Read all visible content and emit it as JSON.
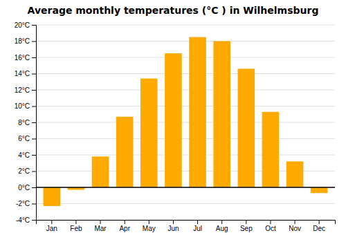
{
  "chart_data": {
    "type": "bar",
    "title": "Average monthly temperatures (°C ) in Wilhelmsburg",
    "categories": [
      "Jan",
      "Feb",
      "Mar",
      "Apr",
      "May",
      "Jun",
      "Jul",
      "Aug",
      "Sep",
      "Oct",
      "Nov",
      "Dec"
    ],
    "values": [
      -2.3,
      -0.3,
      3.8,
      8.7,
      13.4,
      16.5,
      18.5,
      18.0,
      14.6,
      9.3,
      3.2,
      -0.7
    ],
    "color": "#FFAA00",
    "ylim": [
      -4,
      20
    ],
    "yticks": [
      {
        "value": -4,
        "label": "-4°C"
      },
      {
        "value": -2,
        "label": "-2°C"
      },
      {
        "value": 0,
        "label": "0°C"
      },
      {
        "value": 2,
        "label": "2°C"
      },
      {
        "value": 4,
        "label": "4°C"
      },
      {
        "value": 6,
        "label": "6°C"
      },
      {
        "value": 8,
        "label": "8°C"
      },
      {
        "value": 10,
        "label": "10°C"
      },
      {
        "value": 12,
        "label": "12°C"
      },
      {
        "value": 14,
        "label": "14°C"
      },
      {
        "value": 16,
        "label": "16°C"
      },
      {
        "value": 18,
        "label": "18°C"
      },
      {
        "value": 20,
        "label": "20°C"
      }
    ],
    "grid": true
  }
}
